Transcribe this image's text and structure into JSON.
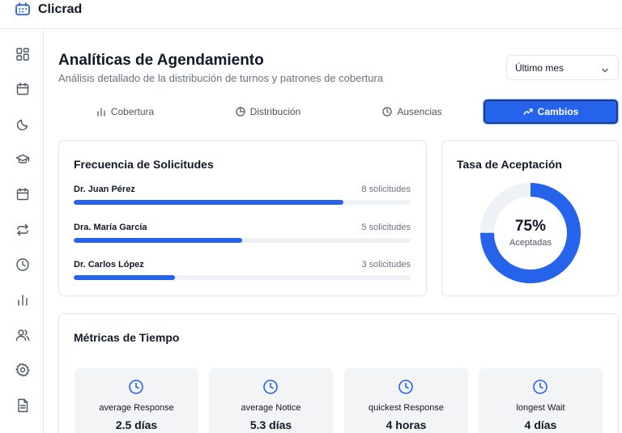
{
  "app": {
    "name": "Clicrad"
  },
  "sidebar": {
    "items": [
      {
        "icon": "dashboard-grid-icon"
      },
      {
        "icon": "calendar-icon"
      },
      {
        "icon": "moon-icon"
      },
      {
        "icon": "graduation-cap-icon"
      },
      {
        "icon": "calendar-icon"
      },
      {
        "icon": "repeat-icon"
      },
      {
        "icon": "clock-icon"
      },
      {
        "icon": "bar-chart-icon"
      },
      {
        "icon": "users-icon"
      },
      {
        "icon": "settings-icon"
      },
      {
        "icon": "document-icon"
      }
    ]
  },
  "header": {
    "title": "Analíticas de Agendamiento",
    "subtitle": "Análisis detallado de la distribución de turnos y patrones de cobertura",
    "period": {
      "selected": "Último mes"
    }
  },
  "tabs": [
    {
      "label": "Cobertura",
      "icon": "bar-chart-icon",
      "active": false
    },
    {
      "label": "Distribución",
      "icon": "pie-chart-icon",
      "active": false
    },
    {
      "label": "Ausencias",
      "icon": "clock-icon",
      "active": false
    },
    {
      "label": "Cambios",
      "icon": "trending-up-icon",
      "active": true
    }
  ],
  "frequency": {
    "title": "Frecuencia de Solicitudes",
    "rows": [
      {
        "name": "Dr. Juan Pérez",
        "count_label": "8 solicitudes",
        "count": 8,
        "fill_fraction": 0.8
      },
      {
        "name": "Dra. María García",
        "count_label": "5 solicitudes",
        "count": 5,
        "fill_fraction": 0.5
      },
      {
        "name": "Dr. Carlos López",
        "count_label": "3 solicitudes",
        "count": 3,
        "fill_fraction": 0.3
      }
    ]
  },
  "acceptance": {
    "title": "Tasa de Aceptación",
    "value_label": "75%",
    "value": 0.75,
    "caption": "Aceptadas"
  },
  "time_metrics": {
    "title": "Métricas de Tiempo",
    "items": [
      {
        "label": "average Response",
        "value": "2.5 días",
        "icon": "clock-icon"
      },
      {
        "label": "average Notice",
        "value": "5.3 días",
        "icon": "clock-icon"
      },
      {
        "label": "quickest Response",
        "value": "4 horas",
        "icon": "clock-icon"
      },
      {
        "label": "longest Wait",
        "value": "4 días",
        "icon": "clock-icon"
      }
    ]
  },
  "colors": {
    "accent": "#2563eb",
    "track": "#eef1f6",
    "metric_bg": "#f3f4f6",
    "border": "#e5e7eb"
  }
}
